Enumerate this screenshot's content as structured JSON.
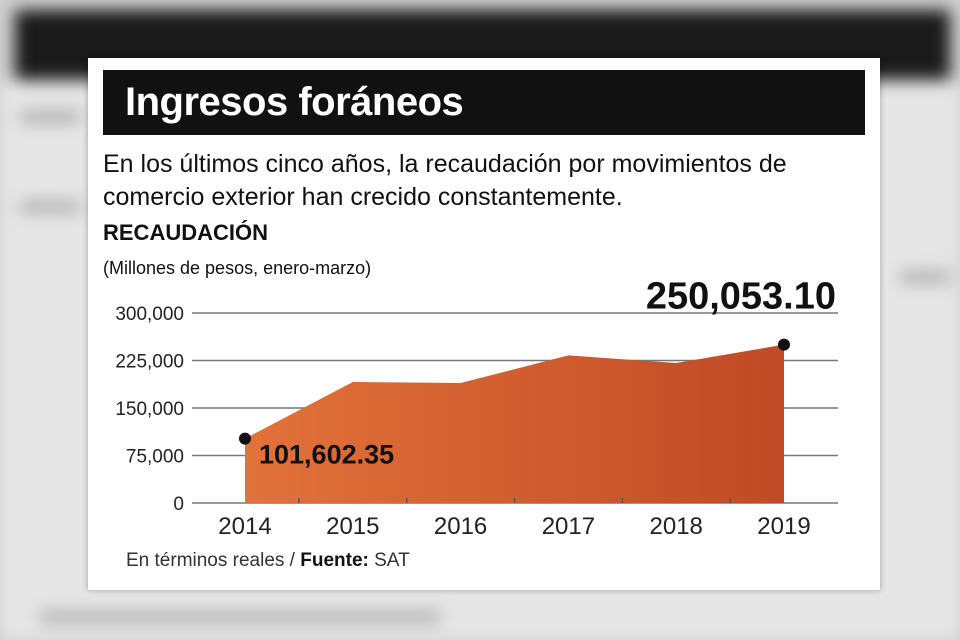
{
  "header": {
    "title": "Ingresos foráneos"
  },
  "subtitle": "En los últimos cinco años, la recaudación por movimientos de comercio exterior han crecido constantemente.",
  "footer": {
    "note": "En términos reales / ",
    "source_label": "Fuente:",
    "source": " SAT"
  },
  "colors": {
    "area_start": "#e2723a",
    "area_end": "#c04a25",
    "header_bg": "#111111"
  },
  "chart_data": {
    "type": "area",
    "title": "RECAUDACIÓN",
    "subtitle": "(Millones de pesos, enero-marzo)",
    "categories": [
      "2014",
      "2015",
      "2016",
      "2017",
      "2018",
      "2019"
    ],
    "values": [
      101602.35,
      191000,
      189500,
      233000,
      221000,
      250053.1
    ],
    "ylim": [
      0,
      300000
    ],
    "yticks": [
      0,
      75000,
      150000,
      225000,
      300000
    ],
    "ytick_labels": [
      "0",
      "75,000",
      "150,000",
      "225,000",
      "300,000"
    ],
    "grid": true,
    "annotations": [
      {
        "category": "2014",
        "label": "101,602.35"
      },
      {
        "category": "2019",
        "label": "250,053.10"
      }
    ]
  }
}
